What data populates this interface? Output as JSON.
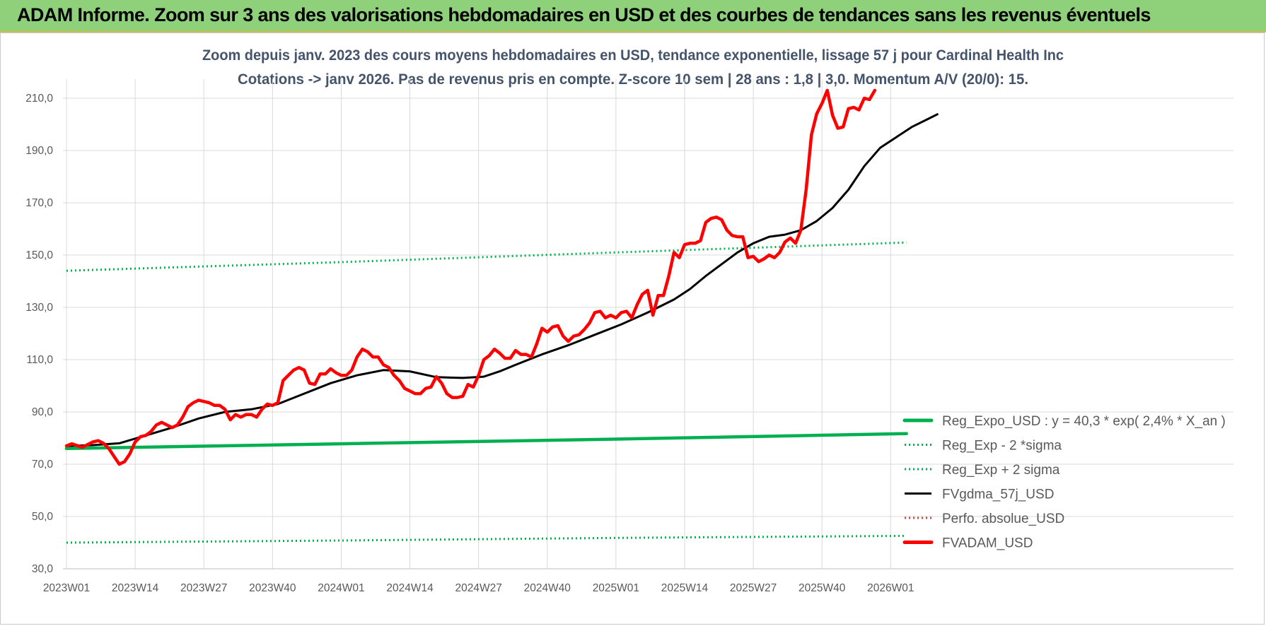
{
  "header": {
    "banner_title": "ADAM Informe. Zoom sur 3 ans des valorisations hebdomadaires en USD et des courbes de tendances sans les revenus éventuels"
  },
  "chart_data": {
    "type": "line",
    "title_line1": "Zoom depuis janv. 2023 des cours moyens hebdomadaires en USD, tendance exponentielle, lissage 57 j pour Cardinal Health Inc",
    "title_line2": "Cotations -> janv 2026. Pas de revenus pris en compte. Z-score 10 sem  | 28 ans : 1,8 | 3,0. Momentum A/V (20/0): 15.",
    "xlabel": "",
    "ylabel": "",
    "ylim": [
      30,
      220
    ],
    "week_count": 160,
    "x_tick_labels": [
      "2023W01",
      "2023W14",
      "2023W27",
      "2023W40",
      "2024W01",
      "2024W14",
      "2024W27",
      "2024W40",
      "2025W01",
      "2025W14",
      "2025W27",
      "2025W40",
      "2026W01"
    ],
    "x_tick_weeks": [
      0,
      13,
      26,
      39,
      52,
      65,
      78,
      91,
      104,
      117,
      130,
      143,
      156
    ],
    "y_ticks": [
      30,
      50,
      70,
      90,
      110,
      130,
      150,
      170,
      190,
      210
    ],
    "y_tick_labels": [
      "30,0",
      "50,0",
      "70,0",
      "90,0",
      "110,0",
      "130,0",
      "150,0",
      "170,0",
      "190,0",
      "210,0"
    ],
    "colors": {
      "green": "#00b050",
      "black": "#000000",
      "red": "#ff0000",
      "red_dotted": "#e04040"
    },
    "series": [
      {
        "name": "Reg_Expo_USD : y = 40,3 * exp( 2,4% *  X_an )",
        "style": "solid-thick",
        "color": "#00b050",
        "anchors": [
          [
            0,
            76.0
          ],
          [
            52,
            77.8
          ],
          [
            104,
            79.6
          ],
          [
            159,
            81.7
          ]
        ]
      },
      {
        "name": "Reg_Exp - 2 *sigma",
        "style": "dotted",
        "color": "#00b050",
        "anchors": [
          [
            0,
            40.0
          ],
          [
            52,
            40.8
          ],
          [
            104,
            41.8
          ],
          [
            159,
            42.6
          ]
        ]
      },
      {
        "name": "Reg_Exp + 2 sigma",
        "style": "dotted",
        "color": "#00b050",
        "anchors": [
          [
            0,
            144.0
          ],
          [
            52,
            147.3
          ],
          [
            104,
            151.0
          ],
          [
            159,
            154.8
          ]
        ]
      },
      {
        "name": "FVgdma_57j_USD",
        "style": "solid",
        "color": "#000000",
        "anchors": [
          [
            0,
            77
          ],
          [
            5,
            77.3
          ],
          [
            10,
            78
          ],
          [
            15,
            81
          ],
          [
            20,
            84
          ],
          [
            25,
            87.5
          ],
          [
            30,
            90
          ],
          [
            35,
            91
          ],
          [
            40,
            93
          ],
          [
            45,
            97
          ],
          [
            50,
            101
          ],
          [
            55,
            104
          ],
          [
            60,
            106
          ],
          [
            65,
            105.5
          ],
          [
            70,
            103.3
          ],
          [
            75,
            103
          ],
          [
            79,
            103.5
          ],
          [
            82,
            105.5
          ],
          [
            85,
            108
          ],
          [
            90,
            112
          ],
          [
            95,
            115.5
          ],
          [
            100,
            119.5
          ],
          [
            105,
            123.5
          ],
          [
            110,
            128
          ],
          [
            115,
            133
          ],
          [
            118,
            137
          ],
          [
            121,
            142
          ],
          [
            124,
            146.5
          ],
          [
            127,
            151
          ],
          [
            130,
            154.5
          ],
          [
            133,
            157
          ],
          [
            136,
            157.8
          ],
          [
            139,
            159.5
          ],
          [
            142,
            163
          ],
          [
            145,
            168
          ],
          [
            148,
            175
          ],
          [
            151,
            184
          ],
          [
            154,
            191
          ],
          [
            157,
            195
          ],
          [
            160,
            199
          ],
          [
            163,
            202
          ],
          [
            165,
            204
          ]
        ]
      },
      {
        "name": "Perfo. absolue_USD",
        "style": "dotted",
        "color": "#e04040",
        "anchors": []
      },
      {
        "name": "FVADAM_USD",
        "style": "solid-thick",
        "color": "#ff0000",
        "anchors": [
          [
            0,
            77
          ],
          [
            1,
            77.8
          ],
          [
            3,
            76.5
          ],
          [
            5,
            78.5
          ],
          [
            6,
            79
          ],
          [
            7,
            78
          ],
          [
            8,
            76
          ],
          [
            9,
            73
          ],
          [
            10,
            70
          ],
          [
            11,
            71
          ],
          [
            12,
            74
          ],
          [
            13,
            78.5
          ],
          [
            14,
            80.5
          ],
          [
            15,
            81
          ],
          [
            16,
            82.5
          ],
          [
            17,
            85
          ],
          [
            18,
            86
          ],
          [
            19,
            85
          ],
          [
            20,
            84
          ],
          [
            21,
            85
          ],
          [
            22,
            88
          ],
          [
            23,
            92
          ],
          [
            24,
            93.5
          ],
          [
            25,
            94.5
          ],
          [
            26,
            94
          ],
          [
            27,
            93.5
          ],
          [
            28,
            92.5
          ],
          [
            29,
            92.5
          ],
          [
            30,
            91
          ],
          [
            31,
            87
          ],
          [
            32,
            89
          ],
          [
            33,
            88
          ],
          [
            34,
            89
          ],
          [
            35,
            89
          ],
          [
            36,
            88
          ],
          [
            37,
            91
          ],
          [
            38,
            93
          ],
          [
            39,
            92.5
          ],
          [
            40,
            93.5
          ],
          [
            41,
            102
          ],
          [
            42,
            104
          ],
          [
            43,
            106
          ],
          [
            44,
            107
          ],
          [
            45,
            106
          ],
          [
            46,
            101
          ],
          [
            47,
            100.5
          ],
          [
            48,
            104.5
          ],
          [
            49,
            104.5
          ],
          [
            50,
            106.5
          ],
          [
            51,
            105
          ],
          [
            52,
            104
          ],
          [
            53,
            104
          ],
          [
            54,
            106
          ],
          [
            55,
            111
          ],
          [
            56,
            114
          ],
          [
            57,
            113
          ],
          [
            58,
            111
          ],
          [
            59,
            111
          ],
          [
            60,
            108
          ],
          [
            61,
            107
          ],
          [
            62,
            104
          ],
          [
            63,
            102
          ],
          [
            64,
            99
          ],
          [
            65,
            98
          ],
          [
            66,
            97
          ],
          [
            67,
            97
          ],
          [
            68,
            99
          ],
          [
            69,
            99.5
          ],
          [
            70,
            103.5
          ],
          [
            71,
            101
          ],
          [
            72,
            97
          ],
          [
            73,
            95.5
          ],
          [
            74,
            95.5
          ],
          [
            75,
            96
          ],
          [
            76,
            100.5
          ],
          [
            77,
            99.5
          ],
          [
            78,
            104
          ],
          [
            79,
            110
          ],
          [
            80,
            111.5
          ],
          [
            81,
            114
          ],
          [
            82,
            112.5
          ],
          [
            83,
            110.5
          ],
          [
            84,
            110.5
          ],
          [
            85,
            113.5
          ],
          [
            86,
            112
          ],
          [
            87,
            112
          ],
          [
            88,
            111
          ],
          [
            89,
            116
          ],
          [
            90,
            122
          ],
          [
            91,
            120.5
          ],
          [
            92,
            122.5
          ],
          [
            93,
            123
          ],
          [
            94,
            119
          ],
          [
            95,
            117
          ],
          [
            96,
            119
          ],
          [
            97,
            119.5
          ],
          [
            98,
            121.5
          ],
          [
            99,
            124
          ],
          [
            100,
            128
          ],
          [
            101,
            128.5
          ],
          [
            102,
            126
          ],
          [
            103,
            127
          ],
          [
            104,
            126
          ],
          [
            105,
            128
          ],
          [
            106,
            128.5
          ],
          [
            107,
            126
          ],
          [
            108,
            131
          ],
          [
            109,
            135
          ],
          [
            110,
            136.5
          ],
          [
            111,
            127
          ],
          [
            112,
            134.5
          ],
          [
            113,
            134.5
          ],
          [
            114,
            142
          ],
          [
            115,
            151
          ],
          [
            116,
            149
          ],
          [
            117,
            154
          ],
          [
            118,
            154.5
          ],
          [
            119,
            154.5
          ],
          [
            120,
            155.5
          ],
          [
            121,
            162.5
          ],
          [
            122,
            164
          ],
          [
            123,
            164.5
          ],
          [
            124,
            163.5
          ],
          [
            125,
            159.5
          ],
          [
            126,
            157.5
          ],
          [
            127,
            157
          ],
          [
            128,
            157
          ],
          [
            129,
            149
          ],
          [
            130,
            149.5
          ],
          [
            131,
            147.5
          ],
          [
            132,
            148.5
          ],
          [
            133,
            150
          ],
          [
            134,
            149
          ],
          [
            135,
            151
          ],
          [
            136,
            155
          ],
          [
            137,
            156.5
          ],
          [
            138,
            154.5
          ],
          [
            139,
            159.5
          ],
          [
            140,
            175
          ],
          [
            141,
            196
          ],
          [
            142,
            204
          ],
          [
            143,
            208
          ],
          [
            144,
            213
          ],
          [
            145,
            203.5
          ],
          [
            146,
            198.5
          ],
          [
            147,
            199
          ],
          [
            148,
            206
          ],
          [
            149,
            206.5
          ],
          [
            150,
            205.5
          ],
          [
            151,
            210
          ],
          [
            152,
            209.5
          ],
          [
            153,
            213
          ]
        ]
      }
    ]
  }
}
